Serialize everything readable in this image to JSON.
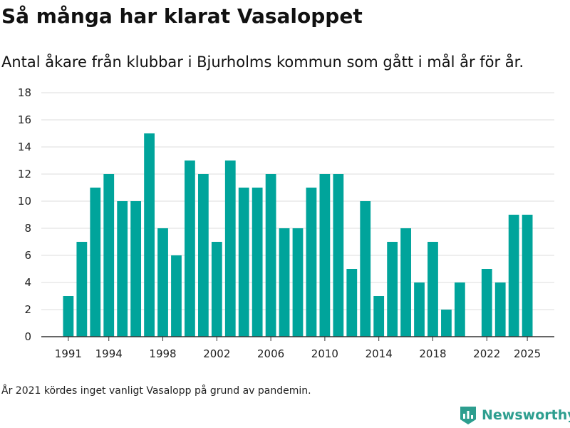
{
  "title": "Så många har klarat Vasaloppet",
  "subtitle": "Antal åkare från klubbar i Bjurholms kommun som gått i mål år för år.",
  "footnote": "År 2021 kördes inget vanligt Vasalopp på grund av pandemin.",
  "brand": {
    "name": "Newsworthy",
    "icon": "bar-chart-logo-icon"
  },
  "colors": {
    "bar": "#00a49b",
    "grid": "#dddddd",
    "axis": "#333333",
    "brand": "#2d9e8f"
  },
  "chart_data": {
    "type": "bar",
    "title": "Så många har klarat Vasaloppet",
    "xlabel": "",
    "ylabel": "",
    "ylim": [
      0,
      18
    ],
    "yticks": [
      0,
      2,
      4,
      6,
      8,
      10,
      12,
      14,
      16,
      18
    ],
    "xticks": [
      1991,
      1994,
      1998,
      2002,
      2006,
      2010,
      2014,
      2018,
      2022,
      2025
    ],
    "xlim": [
      1989,
      2027
    ],
    "grid": true,
    "categories": [
      1991,
      1992,
      1993,
      1994,
      1995,
      1996,
      1997,
      1998,
      1999,
      2000,
      2001,
      2002,
      2003,
      2004,
      2005,
      2006,
      2007,
      2008,
      2009,
      2010,
      2011,
      2012,
      2013,
      2014,
      2015,
      2016,
      2017,
      2018,
      2019,
      2020,
      2022,
      2023,
      2024,
      2025
    ],
    "values": [
      3,
      7,
      11,
      12,
      10,
      10,
      15,
      8,
      6,
      13,
      12,
      7,
      13,
      11,
      11,
      12,
      8,
      8,
      11,
      12,
      12,
      5,
      10,
      3,
      7,
      8,
      4,
      7,
      2,
      4,
      5,
      4,
      9,
      9
    ]
  }
}
